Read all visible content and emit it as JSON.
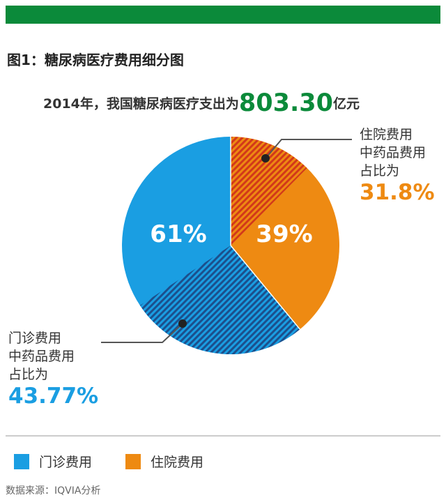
{
  "figure_title": "图1：糖尿病医疗费用细分图",
  "subtitle": {
    "prefix": "2014年，我国糖尿病医疗支出为",
    "amount": "803.30",
    "unit": "亿元"
  },
  "chart_data": {
    "type": "pie",
    "slices": [
      {
        "label": "门诊费用",
        "value": 61,
        "display": "61%",
        "color": "#1a9ee2",
        "sub_share": 43.77
      },
      {
        "label": "住院费用",
        "value": 39,
        "display": "39%",
        "color": "#ee8a12",
        "sub_share": 31.8
      }
    ],
    "legend_position": "bottom-left"
  },
  "annotations": {
    "inpatient": {
      "line1": "住院费用",
      "line2": "中药品费用",
      "line3": "占比为",
      "pct": "31.8%"
    },
    "outpatient": {
      "line1": "门诊费用",
      "line2": "中药品费用",
      "line3": "占比为",
      "pct": "43.77%"
    }
  },
  "legend": {
    "outpatient": "门诊费用",
    "inpatient": "住院费用"
  },
  "source": "数据来源：IQVIA分析",
  "colors": {
    "brand_green": "#0b8a3a",
    "outpatient_blue": "#1a9ee2",
    "outpatient_stripe": "#1c4f8c",
    "inpatient_orange": "#ee8a12",
    "inpatient_stripe": "#d2381a"
  }
}
